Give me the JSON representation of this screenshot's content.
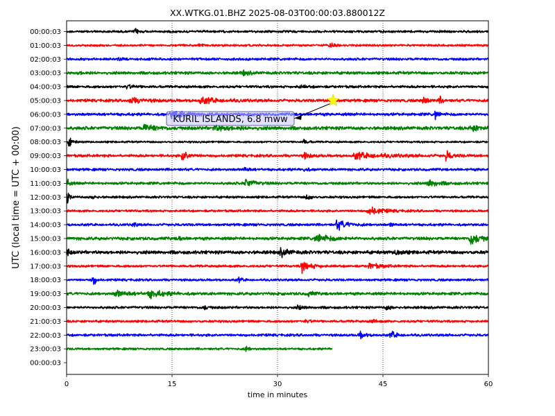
{
  "chart_data": {
    "type": "line",
    "title": "XX.WTKG.01.BHZ 2025-08-03T00:00:03.880012Z",
    "xlabel": "time in minutes",
    "ylabel": "UTC (local time = UTC + 00:00)",
    "xlim": [
      0,
      60
    ],
    "x_ticks": [
      0,
      15,
      30,
      45,
      60
    ],
    "x_tick_labels": [
      "0",
      "15",
      "30",
      "45",
      "60"
    ],
    "grid": "vertical dotted at 15, 30, 45",
    "row_labels": [
      "00:00:03",
      "01:00:03",
      "02:00:03",
      "03:00:03",
      "04:00:03",
      "05:00:03",
      "06:00:03",
      "07:00:03",
      "08:00:03",
      "09:00:03",
      "10:00:03",
      "11:00:03",
      "12:00:03",
      "13:00:03",
      "14:00:03",
      "15:00:03",
      "16:00:03",
      "17:00:03",
      "18:00:03",
      "19:00:03",
      "20:00:03",
      "21:00:03",
      "22:00:03",
      "23:00:03",
      "00:00:03"
    ],
    "color_cycle": [
      "#000000",
      "#ff0000",
      "#0000ff",
      "#008000"
    ],
    "traces": [
      {
        "row": 0,
        "end_minute": 60,
        "noise": 1.2,
        "bursts": [
          [
            9.8,
            2.5,
            0.4
          ]
        ]
      },
      {
        "row": 1,
        "end_minute": 60,
        "noise": 1.1,
        "bursts": [
          [
            18.9,
            1.6,
            0.5
          ],
          [
            37.5,
            1.8,
            0.6
          ]
        ]
      },
      {
        "row": 2,
        "end_minute": 60,
        "noise": 1.3,
        "bursts": [
          [
            7.5,
            1.8,
            0.3
          ]
        ]
      },
      {
        "row": 3,
        "end_minute": 60,
        "noise": 1.5,
        "bursts": [
          [
            1.8,
            1.5,
            0.6
          ],
          [
            25,
            2.5,
            0.8
          ]
        ]
      },
      {
        "row": 4,
        "end_minute": 60,
        "noise": 1.3,
        "bursts": [
          [
            8.5,
            1.8,
            1.0
          ],
          [
            33,
            1.5,
            1.0
          ]
        ]
      },
      {
        "row": 5,
        "end_minute": 60,
        "noise": 1.5,
        "bursts": [
          [
            9,
            2.5,
            2.0
          ],
          [
            19,
            3.0,
            2.5
          ],
          [
            50.8,
            6.0,
            0.4
          ],
          [
            53.2,
            4.0,
            0.3
          ]
        ]
      },
      {
        "row": 6,
        "end_minute": 60,
        "noise": 1.5,
        "bursts": [
          [
            14.9,
            5.0,
            0.3
          ],
          [
            15.5,
            3.0,
            1.5
          ],
          [
            52.5,
            6.0,
            0.3
          ]
        ]
      },
      {
        "row": 7,
        "end_minute": 60,
        "noise": 1.8,
        "bursts": [
          [
            11,
            3.5,
            1.5
          ],
          [
            21,
            2.5,
            2.5
          ],
          [
            57.5,
            2.5,
            1.5
          ]
        ]
      },
      {
        "row": 8,
        "end_minute": 60,
        "noise": 1.0,
        "bursts": [
          [
            0.4,
            5.0,
            0.4
          ],
          [
            33.8,
            2.5,
            0.5
          ]
        ]
      },
      {
        "row": 9,
        "end_minute": 60,
        "noise": 1.4,
        "bursts": [
          [
            16.5,
            5.0,
            0.8
          ],
          [
            33.8,
            3.0,
            0.8
          ],
          [
            41,
            3.0,
            4.0
          ],
          [
            54,
            5.0,
            0.6
          ]
        ]
      },
      {
        "row": 10,
        "end_minute": 60,
        "noise": 1.3,
        "bursts": [
          [
            25.3,
            2.5,
            0.5
          ],
          [
            33.8,
            2.0,
            0.5
          ]
        ]
      },
      {
        "row": 11,
        "end_minute": 60,
        "noise": 1.4,
        "bursts": [
          [
            0.2,
            4.0,
            0.3
          ],
          [
            25.5,
            5.0,
            1.0
          ],
          [
            51.5,
            4.0,
            1.2
          ]
        ]
      },
      {
        "row": 12,
        "end_minute": 60,
        "noise": 1.2,
        "bursts": [
          [
            0.1,
            6.0,
            0.3
          ],
          [
            3.8,
            3.0,
            0.3
          ],
          [
            34.2,
            3.0,
            0.5
          ]
        ]
      },
      {
        "row": 13,
        "end_minute": 60,
        "noise": 1.2,
        "bursts": [
          [
            43,
            5.0,
            1.5
          ]
        ]
      },
      {
        "row": 14,
        "end_minute": 60,
        "noise": 1.3,
        "bursts": [
          [
            9.5,
            3.0,
            0.3
          ],
          [
            38.5,
            5.5,
            1.2
          ],
          [
            46.2,
            2.5,
            0.3
          ]
        ]
      },
      {
        "row": 15,
        "end_minute": 60,
        "noise": 1.6,
        "bursts": [
          [
            16,
            2.5,
            0.3
          ],
          [
            35.5,
            4.0,
            2.0
          ],
          [
            57.5,
            7.0,
            1.2
          ]
        ]
      },
      {
        "row": 16,
        "end_minute": 60,
        "noise": 1.8,
        "bursts": [
          [
            0.2,
            3.0,
            0.3
          ],
          [
            30.5,
            4.0,
            1.0
          ],
          [
            46.8,
            2.5,
            0.8
          ]
        ]
      },
      {
        "row": 17,
        "end_minute": 60,
        "noise": 1.2,
        "bursts": [
          [
            33.5,
            6.0,
            1.2
          ],
          [
            43,
            3.0,
            1.5
          ]
        ]
      },
      {
        "row": 18,
        "end_minute": 60,
        "noise": 1.2,
        "bursts": [
          [
            3.8,
            7.0,
            0.3
          ],
          [
            24.5,
            2.0,
            0.5
          ]
        ]
      },
      {
        "row": 19,
        "end_minute": 60,
        "noise": 1.5,
        "bursts": [
          [
            7,
            3.5,
            1.5
          ],
          [
            11.8,
            4.0,
            1.8
          ],
          [
            34.5,
            3.0,
            0.5
          ]
        ]
      },
      {
        "row": 20,
        "end_minute": 60,
        "noise": 1.3,
        "bursts": [
          [
            19.5,
            2.5,
            0.5
          ],
          [
            33,
            2.5,
            0.5
          ],
          [
            45.5,
            2.5,
            0.5
          ]
        ]
      },
      {
        "row": 21,
        "end_minute": 60,
        "noise": 1.2,
        "bursts": [
          [
            34,
            2.0,
            0.5
          ],
          [
            43.5,
            2.0,
            0.5
          ]
        ]
      },
      {
        "row": 22,
        "end_minute": 60,
        "noise": 1.3,
        "bursts": [
          [
            41.8,
            4.0,
            0.5
          ],
          [
            46.2,
            3.5,
            0.8
          ]
        ]
      },
      {
        "row": 23,
        "end_minute": 37.8,
        "noise": 1.1,
        "bursts": [
          [
            25.5,
            3.0,
            0.4
          ]
        ]
      }
    ],
    "annotations": [
      {
        "label": "KURIL ISLANDS, 6.8 mww",
        "event_minute": 37.9,
        "event_row": 5,
        "marker": "star",
        "marker_color": "#ffff00"
      }
    ]
  }
}
